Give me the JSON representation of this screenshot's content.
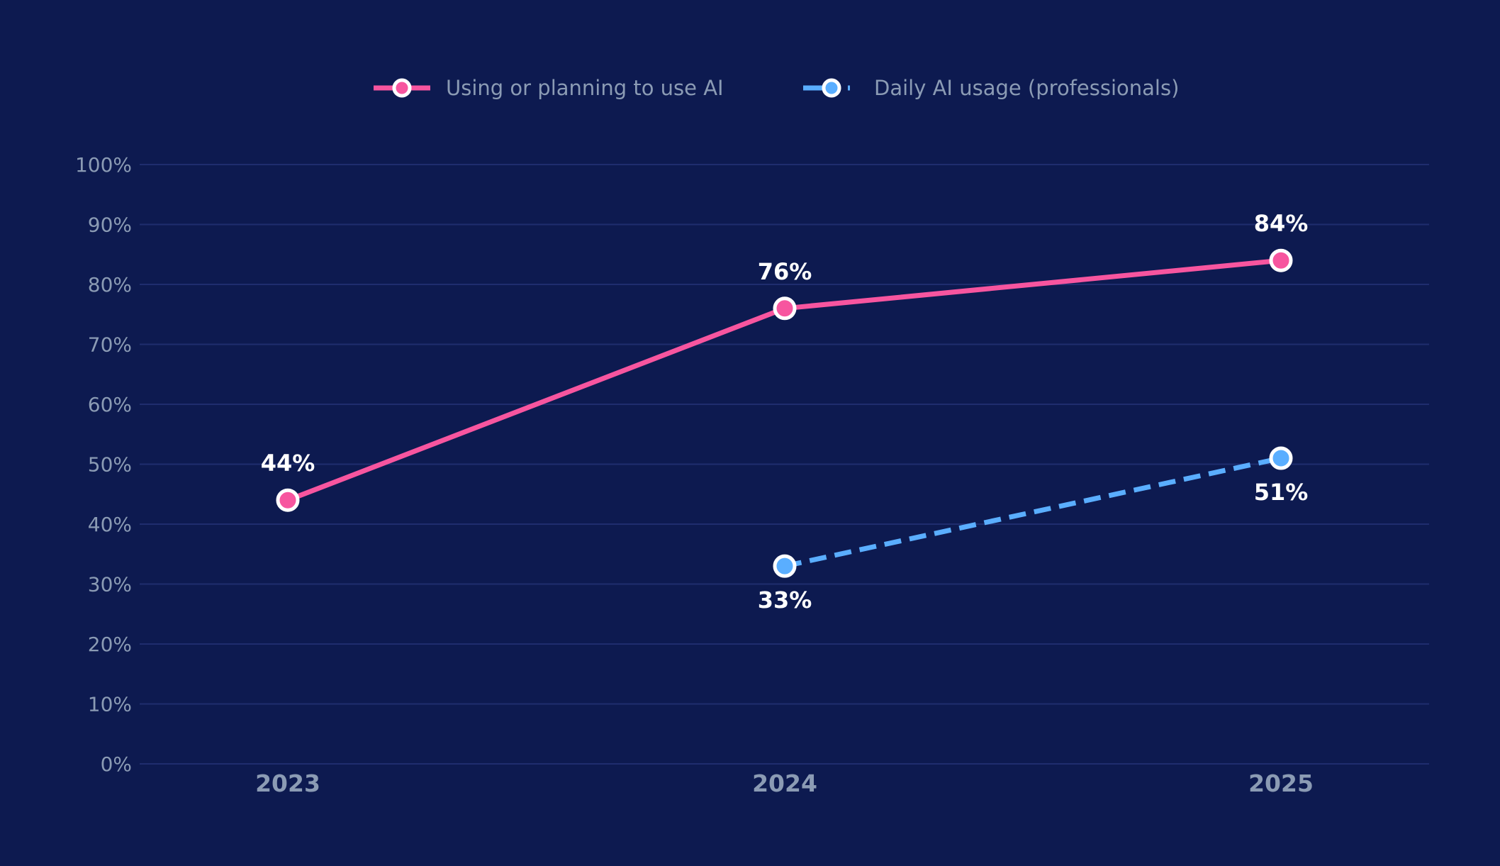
{
  "chart_data": {
    "type": "line",
    "categories": [
      "2023",
      "2024",
      "2025"
    ],
    "series": [
      {
        "name": "Using or planning to use AI",
        "values": [
          44,
          76,
          84
        ],
        "color": "#f7559f",
        "dash": "solid",
        "labels": [
          "44%",
          "76%",
          "84%"
        ],
        "label_position": "above"
      },
      {
        "name": "Daily AI usage (professionals)",
        "values": [
          null,
          33,
          51
        ],
        "color": "#5aaeff",
        "dash": "dashed",
        "labels": [
          null,
          "33%",
          "51%"
        ],
        "label_position": "below"
      }
    ],
    "ylim": [
      0,
      100
    ],
    "yticks": [
      0,
      10,
      20,
      30,
      40,
      50,
      60,
      70,
      80,
      90,
      100
    ],
    "ytick_labels": [
      "0%",
      "10%",
      "20%",
      "30%",
      "40%",
      "50%",
      "60%",
      "70%",
      "80%",
      "90%",
      "100%"
    ],
    "grid": true,
    "legend_position": "top-center",
    "background": "#0d1a50",
    "grid_color": "#1f2d6e"
  }
}
